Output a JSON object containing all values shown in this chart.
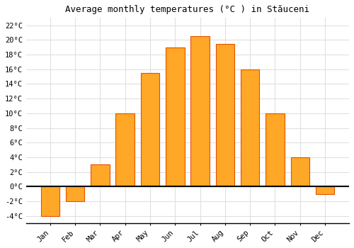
{
  "months": [
    "Jan",
    "Feb",
    "Mar",
    "Apr",
    "May",
    "Jun",
    "Jul",
    "Aug",
    "Sep",
    "Oct",
    "Nov",
    "Dec"
  ],
  "values": [
    -4.0,
    -2.0,
    3.0,
    10.0,
    15.5,
    19.0,
    20.5,
    19.5,
    16.0,
    10.0,
    4.0,
    -1.0
  ],
  "bar_color": "#FFA726",
  "bar_edge_color": "#E65100",
  "title": "Average monthly temperatures (°C ) in Stăuceni",
  "ylim": [
    -5,
    23
  ],
  "yticks": [
    -4,
    -2,
    0,
    2,
    4,
    6,
    8,
    10,
    12,
    14,
    16,
    18,
    20,
    22
  ],
  "ytick_labels": [
    "-4°C",
    "-2°C",
    "0°C",
    "2°C",
    "4°C",
    "6°C",
    "8°C",
    "10°C",
    "12°C",
    "14°C",
    "16°C",
    "18°C",
    "20°C",
    "22°C"
  ],
  "background_color": "#ffffff",
  "grid_color": "#e0e0e0",
  "title_fontsize": 9,
  "tick_fontsize": 7.5,
  "bar_width": 0.75
}
